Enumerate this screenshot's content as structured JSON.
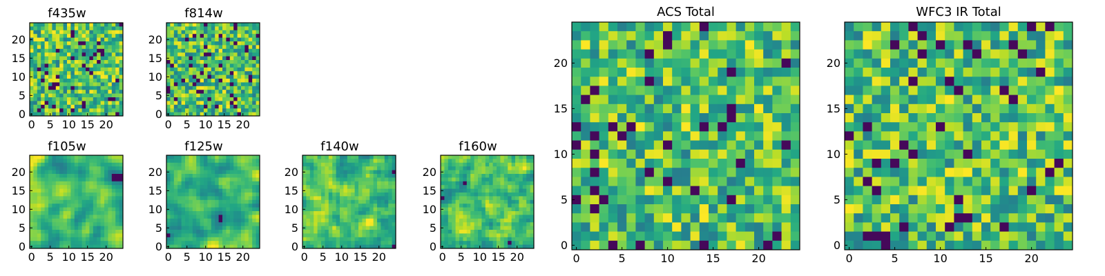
{
  "chart_data": [
    {
      "type": "heatmap",
      "title": "f435w",
      "xlim": [
        0,
        24
      ],
      "ylim": [
        0,
        24
      ],
      "xticks": [
        0,
        5,
        10,
        15,
        20
      ],
      "yticks": [
        0,
        5,
        10,
        15,
        20
      ],
      "grid": false,
      "colormap": "viridis",
      "smooth": 0,
      "seed": 11
    },
    {
      "type": "heatmap",
      "title": "f814w",
      "xlim": [
        0,
        24
      ],
      "ylim": [
        0,
        24
      ],
      "xticks": [
        0,
        5,
        10,
        15,
        20
      ],
      "yticks": [
        0,
        5,
        10,
        15,
        20
      ],
      "grid": false,
      "colormap": "viridis",
      "smooth": 0,
      "seed": 23
    },
    {
      "type": "heatmap",
      "title": "f105w",
      "xlim": [
        0,
        24
      ],
      "ylim": [
        0,
        24
      ],
      "xticks": [
        0,
        5,
        10,
        15,
        20
      ],
      "yticks": [
        0,
        5,
        10,
        15,
        20
      ],
      "grid": false,
      "colormap": "viridis",
      "smooth": 2,
      "seed": 37
    },
    {
      "type": "heatmap",
      "title": "f125w",
      "xlim": [
        0,
        24
      ],
      "ylim": [
        0,
        24
      ],
      "xticks": [
        0,
        5,
        10,
        15,
        20
      ],
      "yticks": [
        0,
        5,
        10,
        15,
        20
      ],
      "grid": false,
      "colormap": "viridis",
      "smooth": 2,
      "seed": 41
    },
    {
      "type": "heatmap",
      "title": "f140w",
      "xlim": [
        0,
        24
      ],
      "ylim": [
        0,
        24
      ],
      "xticks": [
        0,
        5,
        10,
        15,
        20
      ],
      "yticks": [
        0,
        5,
        10,
        15,
        20
      ],
      "grid": false,
      "colormap": "viridis",
      "smooth": 1,
      "seed": 53
    },
    {
      "type": "heatmap",
      "title": "f160w",
      "xlim": [
        0,
        24
      ],
      "ylim": [
        0,
        24
      ],
      "xticks": [
        0,
        5,
        10,
        15,
        20
      ],
      "yticks": [
        0,
        5,
        10,
        15,
        20
      ],
      "grid": false,
      "colormap": "viridis",
      "smooth": 1,
      "seed": 67
    },
    {
      "type": "heatmap",
      "title": "ACS Total",
      "xlim": [
        0,
        24
      ],
      "ylim": [
        0,
        24
      ],
      "xticks": [
        0,
        5,
        10,
        15,
        20
      ],
      "yticks": [
        0,
        5,
        10,
        15,
        20
      ],
      "grid": false,
      "colormap": "viridis",
      "smooth": 0,
      "seed": 79
    },
    {
      "type": "heatmap",
      "title": "WFC3 IR Total",
      "xlim": [
        0,
        24
      ],
      "ylim": [
        0,
        24
      ],
      "xticks": [
        0,
        5,
        10,
        15,
        20
      ],
      "yticks": [
        0,
        5,
        10,
        15,
        20
      ],
      "grid": false,
      "colormap": "viridis",
      "smooth": 0,
      "seed": 97
    }
  ]
}
